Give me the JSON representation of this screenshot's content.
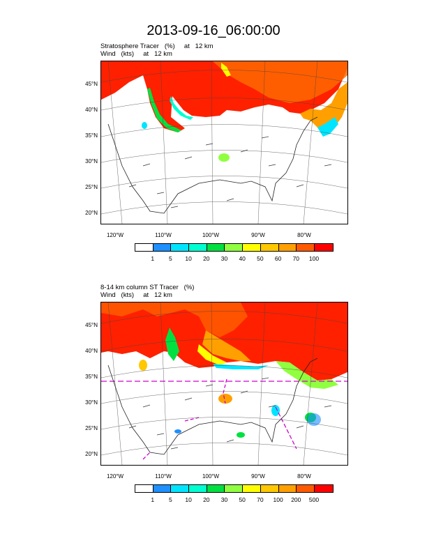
{
  "title": "2013-09-16_06:00:00",
  "panels": [
    {
      "subtitle_line1": "Stratosphere Tracer   (%)     at   12 km",
      "subtitle_line2": "Wind   (kts)     at   12 km",
      "lat_labels": [
        "45°N",
        "40°N",
        "35°N",
        "30°N",
        "25°N",
        "20°N"
      ],
      "lon_labels": [
        "120°W",
        "110°W",
        "100°W",
        "90°W",
        "80°W"
      ],
      "colorbar_labels": [
        "1",
        "5",
        "10",
        "20",
        "30",
        "40",
        "50",
        "60",
        "70",
        "100"
      ]
    },
    {
      "subtitle_line1": "8-14 km column ST Tracer   (%)",
      "subtitle_line2": "Wind   (kts)     at   12 km",
      "lat_labels": [
        "45°N",
        "40°N",
        "35°N",
        "30°N",
        "25°N",
        "20°N"
      ],
      "lon_labels": [
        "120°W",
        "110°W",
        "100°W",
        "90°W",
        "80°W"
      ],
      "colorbar_labels": [
        "1",
        "5",
        "10",
        "20",
        "30",
        "50",
        "70",
        "100",
        "200",
        "500"
      ]
    }
  ],
  "colorbar_colors": [
    "#ffffff",
    "#1e90ff",
    "#00e5ff",
    "#00ffd0",
    "#00e040",
    "#90ff40",
    "#ffff00",
    "#ffc800",
    "#ffa000",
    "#ff5a00",
    "#ff0000"
  ],
  "contour_color": "#d000d0"
}
